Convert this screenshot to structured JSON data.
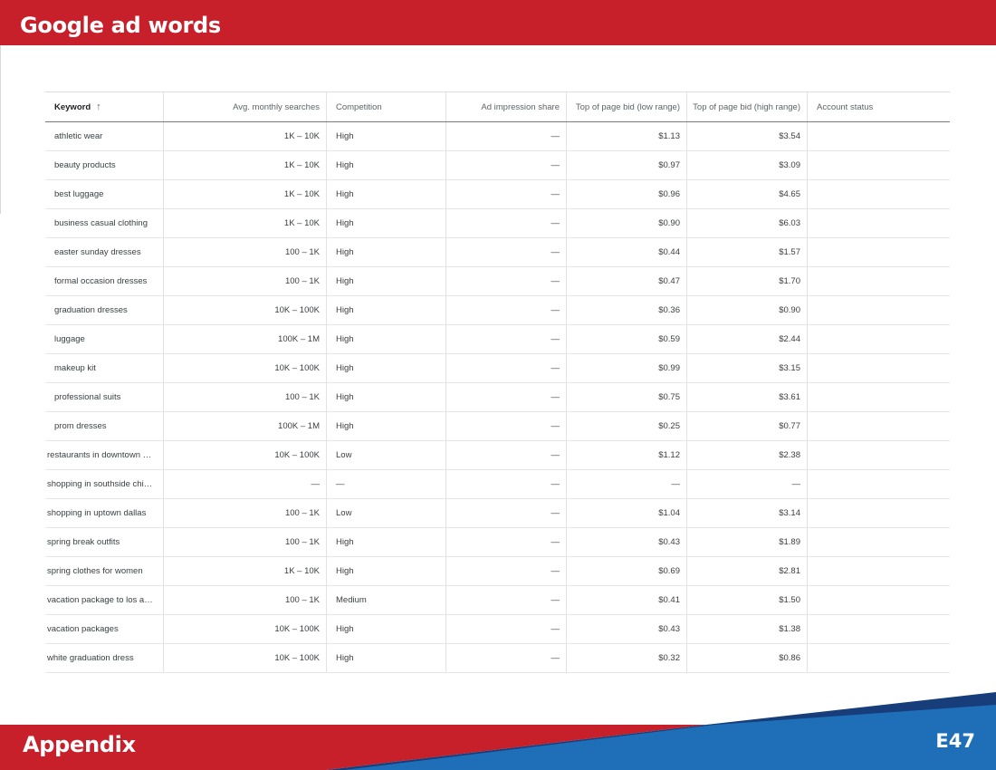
{
  "header": {
    "title": "Google ad words"
  },
  "table": {
    "columns": [
      "Keyword",
      "Avg. monthly searches",
      "Competition",
      "Ad impression share",
      "Top of page bid (low range)",
      "Top of page bid (high range)",
      "Account status"
    ],
    "sort_icon": "arrow-up-icon",
    "rows": [
      {
        "keyword": "athletic wear",
        "searches": "1K – 10K",
        "competition": "High",
        "impression": "—",
        "low": "$1.13",
        "high": "$3.54",
        "status": ""
      },
      {
        "keyword": "beauty products",
        "searches": "1K – 10K",
        "competition": "High",
        "impression": "—",
        "low": "$0.97",
        "high": "$3.09",
        "status": ""
      },
      {
        "keyword": "best luggage",
        "searches": "1K – 10K",
        "competition": "High",
        "impression": "—",
        "low": "$0.96",
        "high": "$4.65",
        "status": ""
      },
      {
        "keyword": "business casual clothing",
        "searches": "1K – 10K",
        "competition": "High",
        "impression": "—",
        "low": "$0.90",
        "high": "$6.03",
        "status": ""
      },
      {
        "keyword": "easter sunday dresses",
        "searches": "100 – 1K",
        "competition": "High",
        "impression": "—",
        "low": "$0.44",
        "high": "$1.57",
        "status": ""
      },
      {
        "keyword": "formal occasion dresses",
        "searches": "100 – 1K",
        "competition": "High",
        "impression": "—",
        "low": "$0.47",
        "high": "$1.70",
        "status": ""
      },
      {
        "keyword": "graduation dresses",
        "searches": "10K – 100K",
        "competition": "High",
        "impression": "—",
        "low": "$0.36",
        "high": "$0.90",
        "status": ""
      },
      {
        "keyword": "luggage",
        "searches": "100K – 1M",
        "competition": "High",
        "impression": "—",
        "low": "$0.59",
        "high": "$2.44",
        "status": ""
      },
      {
        "keyword": "makeup kit",
        "searches": "10K – 100K",
        "competition": "High",
        "impression": "—",
        "low": "$0.99",
        "high": "$3.15",
        "status": ""
      },
      {
        "keyword": "professional suits",
        "searches": "100 – 1K",
        "competition": "High",
        "impression": "—",
        "low": "$0.75",
        "high": "$3.61",
        "status": ""
      },
      {
        "keyword": "prom dresses",
        "searches": "100K – 1M",
        "competition": "High",
        "impression": "—",
        "low": "$0.25",
        "high": "$0.77",
        "status": ""
      },
      {
        "keyword": "restaurants in downtown …",
        "searches": "10K – 100K",
        "competition": "Low",
        "impression": "—",
        "low": "$1.12",
        "high": "$2.38",
        "status": ""
      },
      {
        "keyword": "shopping in southside chi…",
        "searches": "—",
        "competition": "—",
        "impression": "—",
        "low": "—",
        "high": "—",
        "status": ""
      },
      {
        "keyword": "shopping in uptown dallas",
        "searches": "100 – 1K",
        "competition": "Low",
        "impression": "—",
        "low": "$1.04",
        "high": "$3.14",
        "status": ""
      },
      {
        "keyword": "spring break outfits",
        "searches": "100 – 1K",
        "competition": "High",
        "impression": "—",
        "low": "$0.43",
        "high": "$1.89",
        "status": ""
      },
      {
        "keyword": "spring clothes for women",
        "searches": "1K – 10K",
        "competition": "High",
        "impression": "—",
        "low": "$0.69",
        "high": "$2.81",
        "status": ""
      },
      {
        "keyword": "vacation package to los a…",
        "searches": "100 – 1K",
        "competition": "Medium",
        "impression": "—",
        "low": "$0.41",
        "high": "$1.50",
        "status": ""
      },
      {
        "keyword": "vacation packages",
        "searches": "10K – 100K",
        "competition": "High",
        "impression": "—",
        "low": "$0.43",
        "high": "$1.38",
        "status": ""
      },
      {
        "keyword": "white graduation dress",
        "searches": "10K – 100K",
        "competition": "High",
        "impression": "—",
        "low": "$0.32",
        "high": "$0.86",
        "status": ""
      }
    ]
  },
  "footer": {
    "title": "Appendix",
    "page": "E47"
  },
  "colors": {
    "brand_red": "#c8202a",
    "brand_blue": "#1f6fb8",
    "navy": "#173e7a"
  }
}
